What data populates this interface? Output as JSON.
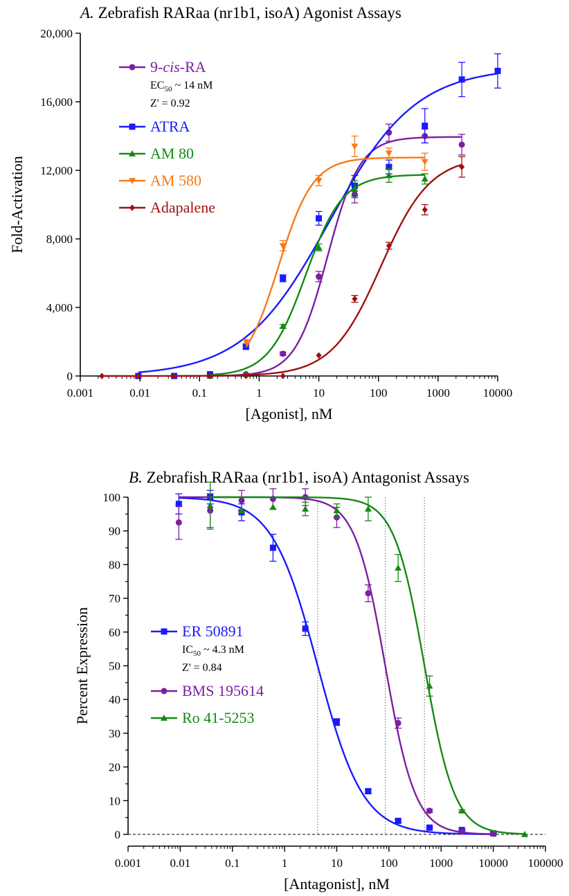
{
  "chart_data": [
    {
      "type": "line",
      "title_prefix": "A.",
      "title_text": "Zebrafish RARaa (nr1b1, isoA) Agonist Assays",
      "xlabel": "[Agonist], nM",
      "ylabel": "Fold-Activation",
      "xscale": "log",
      "xlim": [
        0.001,
        10000
      ],
      "ylim": [
        0,
        20000
      ],
      "xticks": [
        "0.001",
        "0.01",
        "0.1",
        "1",
        "10",
        "100",
        "1000",
        "10000"
      ],
      "yticks": [
        "0",
        "4,000",
        "8,000",
        "12,000",
        "16,000",
        "20,000"
      ],
      "legend_position": "top-left",
      "baseline": 0,
      "series": [
        {
          "name_parts": [
            "9-",
            "cis",
            "-RA"
          ],
          "color": "#7b1fa2",
          "marker": "circle",
          "notes": [
            {
              "type": "ec",
              "sym": "EC",
              "sub": "50",
              "rest": " ~ 14 nM"
            },
            {
              "type": "plain",
              "text": "Z' = 0.92"
            }
          ],
          "x": [
            0.0375,
            0.15,
            0.6,
            2.5,
            10,
            40,
            150,
            600,
            2500
          ],
          "y": [
            0,
            0,
            100,
            1300,
            5800,
            10600,
            14200,
            14000,
            13500
          ],
          "err": [
            0,
            0,
            0,
            100,
            300,
            500,
            500,
            400,
            600
          ],
          "fit": {
            "bottom": 0,
            "top": 13950,
            "ec50": 14,
            "hill": 1.6
          }
        },
        {
          "name": "ATRA",
          "color": "#1a1aff",
          "marker": "square",
          "notes": [],
          "x": [
            0.0094,
            0.0375,
            0.15,
            0.6,
            2.5,
            10,
            40,
            150,
            600,
            2500,
            10000
          ],
          "y": [
            0,
            0,
            100,
            1700,
            5700,
            9200,
            11100,
            12200,
            14600,
            17300,
            17800
          ],
          "err": [
            0,
            0,
            0,
            100,
            200,
            400,
            600,
            400,
            1000,
            1000,
            1000
          ],
          "fit": {
            "bottom": 0,
            "top": 18000,
            "ec50": 15,
            "hill": 0.6
          }
        },
        {
          "name": "AM 80",
          "color": "#138a13",
          "marker": "triangle",
          "notes": [],
          "x": [
            0.15,
            0.6,
            2.5,
            10,
            40,
            150,
            600
          ],
          "y": [
            0,
            100,
            2900,
            7500,
            10900,
            11700,
            11500
          ],
          "err": [
            0,
            0,
            100,
            200,
            500,
            400,
            300
          ],
          "fit": {
            "bottom": 0,
            "top": 11750,
            "ec50": 6,
            "hill": 1.4
          }
        },
        {
          "name": "AM 580",
          "color": "#f77916",
          "marker": "triangle-down",
          "notes": [],
          "x": [
            0.6,
            2.5,
            10,
            40,
            150,
            600
          ],
          "y": [
            2000,
            7600,
            11400,
            13400,
            13000,
            12500
          ],
          "err": [
            100,
            300,
            300,
            600,
            300,
            500
          ],
          "fit": {
            "bottom": 0,
            "top": 12750,
            "ec50": 2.1,
            "hill": 1.5
          }
        },
        {
          "name": "Adapalene",
          "color": "#9e1111",
          "marker": "diamond",
          "notes": [],
          "x": [
            0.0023,
            0.0094,
            0.0375,
            0.15,
            0.6,
            2.5,
            10,
            40,
            150,
            600,
            2500
          ],
          "y": [
            0,
            0,
            0,
            0,
            0,
            0,
            1200,
            4500,
            7600,
            9700,
            12200
          ],
          "err": [
            0,
            0,
            0,
            0,
            0,
            0,
            0,
            200,
            200,
            300,
            600
          ],
          "fit": {
            "bottom": 0,
            "top": 12800,
            "ec50": 110,
            "hill": 1.05
          }
        }
      ]
    },
    {
      "type": "line",
      "title_prefix": "B.",
      "title_text": "Zebrafish RARaa (nr1b1, isoA) Antagonist Assays",
      "xlabel": "[Antagonist], nM",
      "ylabel": "Percent Expression",
      "xscale": "log",
      "xlim": [
        0.001,
        100000
      ],
      "ylim": [
        0,
        100
      ],
      "xticks": [
        "0.001",
        "0.01",
        "0.1",
        "1",
        "10",
        "100",
        "1000",
        "10000",
        "100000"
      ],
      "yticks": [
        "0",
        "10",
        "20",
        "30",
        "40",
        "50",
        "60",
        "70",
        "80",
        "90",
        "100"
      ],
      "legend_position": "left",
      "baseline": 0,
      "ic50_lines": [
        4.3,
        85,
        480
      ],
      "series": [
        {
          "name": "ER 50891",
          "color": "#1a1aff",
          "marker": "square",
          "notes": [
            {
              "type": "ec",
              "sym": "IC",
              "sub": "50",
              "rest": " ~ 4.3 nM"
            },
            {
              "type": "plain",
              "text": "Z' = 0.84"
            }
          ],
          "x": [
            0.0094,
            0.0375,
            0.15,
            0.6,
            2.5,
            10,
            40,
            150,
            600,
            2500,
            10000
          ],
          "y": [
            98,
            100,
            95.5,
            85,
            61,
            33.3,
            12.8,
            4.0,
            2.0,
            1.3,
            0.3
          ],
          "err": [
            3,
            2,
            2.5,
            4,
            2,
            1,
            0.6,
            0.4,
            0.3,
            0.2,
            0.1
          ],
          "fit": {
            "top": 100,
            "bottom": 0,
            "ic50": 4.3,
            "hill": 1.0,
            "xmin": 0.0094,
            "xmax": 10000
          }
        },
        {
          "name": "BMS 195614",
          "color": "#7b1fa2",
          "marker": "circle",
          "notes": [],
          "x": [
            0.0094,
            0.0375,
            0.15,
            0.6,
            2.5,
            10,
            40,
            150,
            600,
            2500,
            10000
          ],
          "y": [
            92.5,
            96,
            99,
            99.5,
            100,
            94,
            71.5,
            33,
            7,
            0.8,
            0.2
          ],
          "err": [
            5,
            5,
            3,
            3,
            2.5,
            3,
            2.5,
            1.5,
            0.5,
            0.2,
            0.1
          ],
          "fit": {
            "top": 100,
            "bottom": 0,
            "ic50": 85,
            "hill": 1.5,
            "xmin": 0.0094,
            "xmax": 10000
          }
        },
        {
          "name": "Ro 41-5253",
          "color": "#138a13",
          "marker": "triangle",
          "notes": [],
          "x": [
            0.0375,
            0.15,
            0.6,
            2.5,
            10,
            40,
            150,
            600,
            2500,
            40000
          ],
          "y": [
            97.5,
            96,
            97,
            96.5,
            96,
            96.5,
            79,
            44,
            7,
            0
          ],
          "err": [
            7,
            0,
            0,
            2,
            2,
            3.5,
            4,
            3,
            0.3,
            0
          ],
          "fit": {
            "top": 100,
            "bottom": 0,
            "ic50": 480,
            "hill": 1.5,
            "xmin": 0.0375,
            "xmax": 40000
          }
        }
      ]
    }
  ]
}
